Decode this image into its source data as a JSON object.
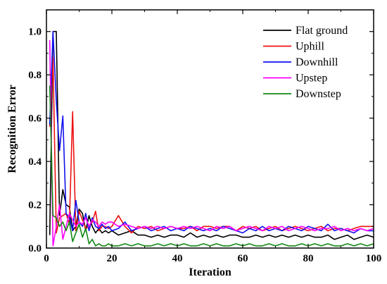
{
  "chart_data": {
    "type": "line",
    "xlabel": "Iteration",
    "ylabel": "Recognition Error",
    "xlim": [
      0,
      100
    ],
    "ylim": [
      0,
      1.1
    ],
    "xticks": [
      0,
      20,
      40,
      60,
      80,
      100
    ],
    "yticks": [
      0.0,
      0.2,
      0.4,
      0.6,
      0.8,
      1.0
    ],
    "xtick_labels": [
      "0",
      "20",
      "40",
      "60",
      "80",
      "100"
    ],
    "ytick_labels": [
      "0.0",
      "0.2",
      "0.4",
      "0.6",
      "0.8",
      "1.0"
    ],
    "grid": false,
    "legend_position": "top-right",
    "series": [
      {
        "name": "Flat ground",
        "color": "#000000",
        "x": [
          1,
          2,
          3,
          4,
          5,
          6,
          7,
          8,
          9,
          10,
          11,
          12,
          13,
          14,
          15,
          16,
          17,
          18,
          19,
          20,
          22,
          24,
          26,
          28,
          30,
          32,
          34,
          36,
          38,
          40,
          42,
          44,
          46,
          48,
          50,
          52,
          54,
          56,
          58,
          60,
          62,
          64,
          66,
          68,
          70,
          72,
          74,
          76,
          78,
          80,
          82,
          84,
          86,
          88,
          90,
          92,
          94,
          96,
          98,
          100
        ],
        "y": [
          0.06,
          1.0,
          1.0,
          0.15,
          0.27,
          0.2,
          0.19,
          0.08,
          0.1,
          0.18,
          0.16,
          0.08,
          0.15,
          0.1,
          0.07,
          0.09,
          0.07,
          0.08,
          0.07,
          0.08,
          0.06,
          0.07,
          0.08,
          0.06,
          0.06,
          0.05,
          0.06,
          0.05,
          0.06,
          0.06,
          0.05,
          0.07,
          0.05,
          0.06,
          0.05,
          0.06,
          0.05,
          0.06,
          0.06,
          0.05,
          0.05,
          0.06,
          0.05,
          0.06,
          0.05,
          0.06,
          0.05,
          0.06,
          0.05,
          0.06,
          0.05,
          0.05,
          0.06,
          0.04,
          0.05,
          0.06,
          0.04,
          0.05,
          0.06,
          0.05
        ]
      },
      {
        "name": "Uphill",
        "color": "#ee1111",
        "x": [
          1,
          2,
          3,
          4,
          5,
          6,
          7,
          8,
          9,
          10,
          11,
          12,
          13,
          14,
          15,
          16,
          17,
          18,
          19,
          20,
          22,
          24,
          26,
          28,
          30,
          32,
          34,
          36,
          38,
          40,
          42,
          44,
          46,
          48,
          50,
          52,
          54,
          56,
          58,
          60,
          62,
          64,
          66,
          68,
          70,
          72,
          74,
          76,
          78,
          80,
          82,
          84,
          86,
          88,
          90,
          92,
          94,
          96,
          98,
          100
        ],
        "y": [
          0.56,
          0.88,
          0.07,
          0.14,
          0.15,
          0.16,
          0.11,
          0.63,
          0.08,
          0.17,
          0.13,
          0.09,
          0.1,
          0.12,
          0.17,
          0.08,
          0.1,
          0.1,
          0.09,
          0.1,
          0.15,
          0.1,
          0.07,
          0.1,
          0.09,
          0.1,
          0.08,
          0.09,
          0.1,
          0.09,
          0.09,
          0.1,
          0.08,
          0.1,
          0.1,
          0.09,
          0.1,
          0.1,
          0.08,
          0.1,
          0.09,
          0.1,
          0.08,
          0.09,
          0.1,
          0.08,
          0.09,
          0.1,
          0.09,
          0.08,
          0.09,
          0.1,
          0.08,
          0.09,
          0.09,
          0.08,
          0.09,
          0.1,
          0.1,
          0.1
        ]
      },
      {
        "name": "Downhill",
        "color": "#1111ee",
        "x": [
          1,
          2,
          3,
          4,
          5,
          6,
          7,
          8,
          9,
          10,
          11,
          12,
          13,
          14,
          15,
          16,
          17,
          18,
          19,
          20,
          22,
          24,
          26,
          28,
          30,
          32,
          34,
          36,
          38,
          40,
          42,
          44,
          46,
          48,
          50,
          52,
          54,
          56,
          58,
          60,
          62,
          64,
          66,
          68,
          70,
          72,
          74,
          76,
          78,
          80,
          82,
          84,
          86,
          88,
          90,
          92,
          94,
          96,
          98,
          100
        ],
        "y": [
          0.57,
          1.0,
          0.68,
          0.45,
          0.61,
          0.16,
          0.14,
          0.08,
          0.22,
          0.12,
          0.1,
          0.16,
          0.08,
          0.14,
          0.1,
          0.09,
          0.11,
          0.09,
          0.1,
          0.08,
          0.09,
          0.12,
          0.08,
          0.09,
          0.1,
          0.08,
          0.09,
          0.1,
          0.08,
          0.09,
          0.08,
          0.1,
          0.09,
          0.08,
          0.09,
          0.08,
          0.1,
          0.09,
          0.08,
          0.07,
          0.09,
          0.08,
          0.1,
          0.08,
          0.09,
          0.08,
          0.1,
          0.09,
          0.08,
          0.1,
          0.09,
          0.08,
          0.11,
          0.08,
          0.09,
          0.08,
          0.07,
          0.09,
          0.08,
          0.08
        ]
      },
      {
        "name": "Upstep",
        "color": "#ff00ff",
        "x": [
          1,
          2,
          3,
          4,
          5,
          6,
          7,
          8,
          9,
          10,
          11,
          12,
          13,
          14,
          15,
          16,
          17,
          18,
          19,
          20,
          22,
          24,
          26,
          28,
          30,
          32,
          34,
          36,
          38,
          40,
          42,
          44,
          46,
          48,
          50,
          52,
          54,
          56,
          58,
          60,
          62,
          64,
          66,
          68,
          70,
          72,
          74,
          76,
          78,
          80,
          82,
          84,
          86,
          88,
          90,
          92,
          94,
          96,
          98,
          100
        ],
        "y": [
          0.96,
          0.01,
          0.1,
          0.2,
          0.04,
          0.1,
          0.16,
          0.13,
          0.1,
          0.12,
          0.11,
          0.14,
          0.1,
          0.13,
          0.12,
          0.1,
          0.12,
          0.11,
          0.12,
          0.12,
          0.1,
          0.11,
          0.1,
          0.09,
          0.1,
          0.09,
          0.1,
          0.09,
          0.1,
          0.09,
          0.1,
          0.09,
          0.1,
          0.09,
          0.08,
          0.1,
          0.09,
          0.1,
          0.08,
          0.09,
          0.1,
          0.09,
          0.08,
          0.1,
          0.09,
          0.1,
          0.08,
          0.09,
          0.1,
          0.09,
          0.08,
          0.09,
          0.09,
          0.1,
          0.08,
          0.09,
          0.08,
          0.09,
          0.08,
          0.09
        ]
      },
      {
        "name": "Downstep",
        "color": "#118811",
        "x": [
          1,
          2,
          3,
          4,
          5,
          6,
          7,
          8,
          9,
          10,
          11,
          12,
          13,
          14,
          15,
          16,
          17,
          18,
          19,
          20,
          22,
          24,
          26,
          28,
          30,
          32,
          34,
          36,
          38,
          40,
          42,
          44,
          46,
          48,
          50,
          52,
          54,
          56,
          58,
          60,
          62,
          64,
          66,
          68,
          70,
          72,
          74,
          76,
          78,
          80,
          82,
          84,
          86,
          88,
          90,
          92,
          94,
          96,
          98,
          100
        ],
        "y": [
          0.75,
          0.15,
          0.14,
          0.1,
          0.12,
          0.08,
          0.12,
          0.03,
          0.07,
          0.11,
          0.05,
          0.09,
          0.02,
          0.04,
          0.01,
          0.02,
          0.01,
          0.01,
          0.02,
          0.01,
          0.01,
          0.02,
          0.01,
          0.02,
          0.01,
          0.01,
          0.02,
          0.01,
          0.02,
          0.01,
          0.02,
          0.01,
          0.01,
          0.02,
          0.01,
          0.02,
          0.01,
          0.01,
          0.02,
          0.01,
          0.02,
          0.01,
          0.01,
          0.02,
          0.01,
          0.02,
          0.01,
          0.01,
          0.02,
          0.01,
          0.02,
          0.01,
          0.02,
          0.01,
          0.01,
          0.02,
          0.01,
          0.02,
          0.01,
          0.02
        ]
      }
    ]
  }
}
